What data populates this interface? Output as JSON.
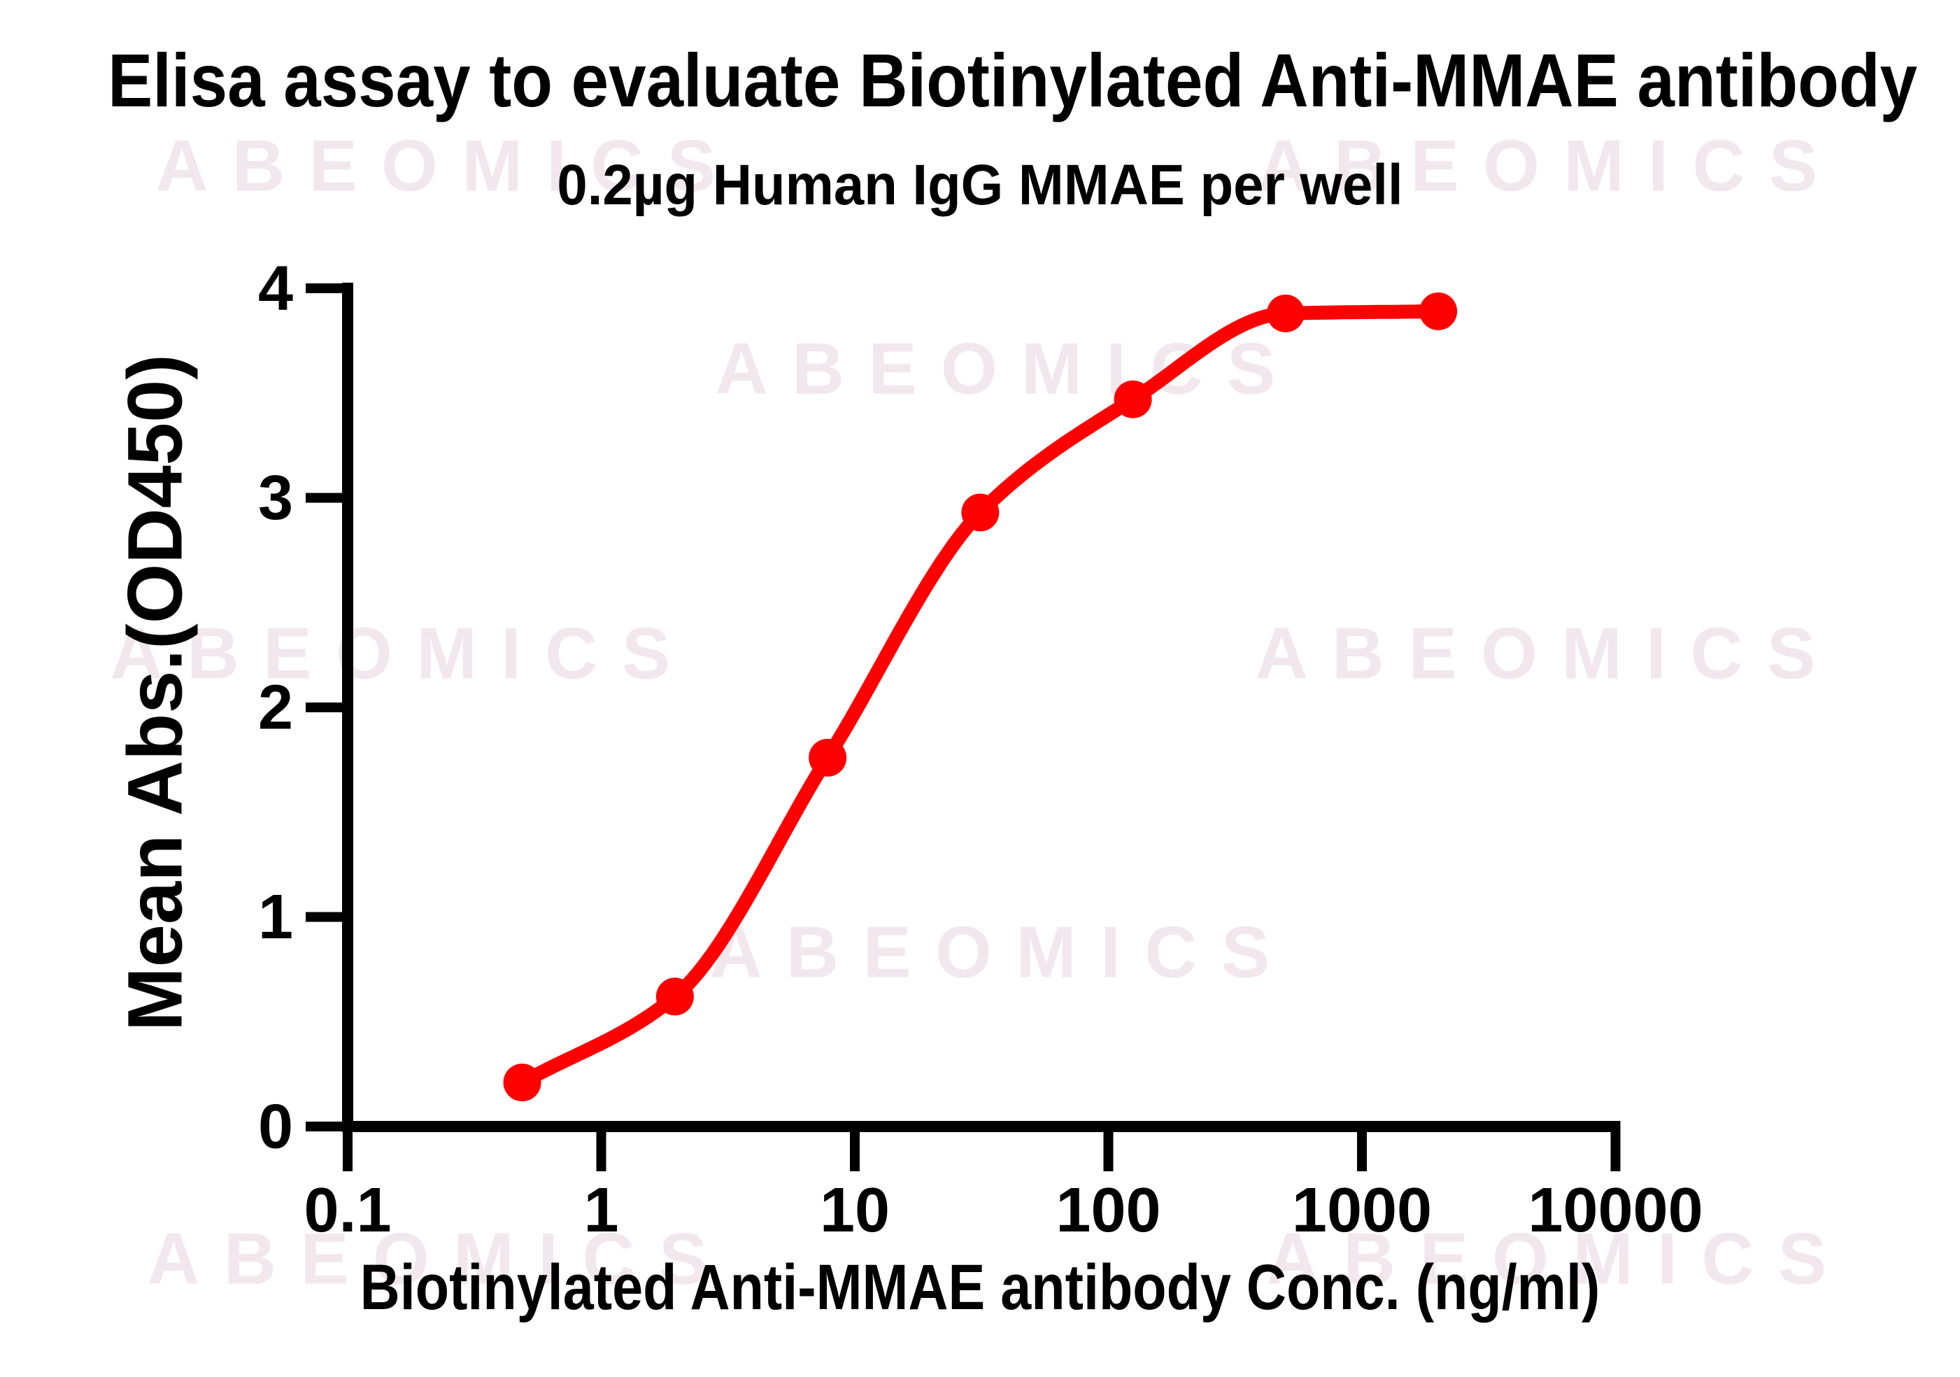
{
  "title": "Elisa assay to evaluate Biotinylated Anti-MMAE antibody",
  "subtitle": "0.2µg Human IgG MMAE per well",
  "watermark": {
    "text": "ABEOMICS"
  },
  "chart_data": {
    "type": "scatter",
    "title": "Elisa assay to evaluate Biotinylated Anti-MMAE antibody",
    "subtitle": "0.2µg Human IgG MMAE per well",
    "xlabel": "Biotinylated Anti-MMAE antibody Conc. (ng/ml)",
    "ylabel": "Mean Abs.(OD450)",
    "x_scale": "log10",
    "xlim": [
      0.1,
      10000
    ],
    "ylim": [
      0,
      4
    ],
    "x_ticks": [
      "0.1",
      "1",
      "10",
      "100",
      "1000",
      "10000"
    ],
    "y_ticks": [
      "0",
      "1",
      "2",
      "3",
      "4"
    ],
    "grid": false,
    "legend": "none",
    "series": [
      {
        "name": "Biotinylated Anti-MMAE antibody",
        "color": "#FF0000",
        "marker": "circle",
        "line": "smooth-sigmoid",
        "x": [
          0.488,
          1.953,
          7.813,
          31.25,
          125,
          500,
          2000
        ],
        "y": [
          0.21,
          0.62,
          1.76,
          2.93,
          3.47,
          3.88,
          3.89
        ]
      }
    ],
    "axis_color": "#000000"
  }
}
